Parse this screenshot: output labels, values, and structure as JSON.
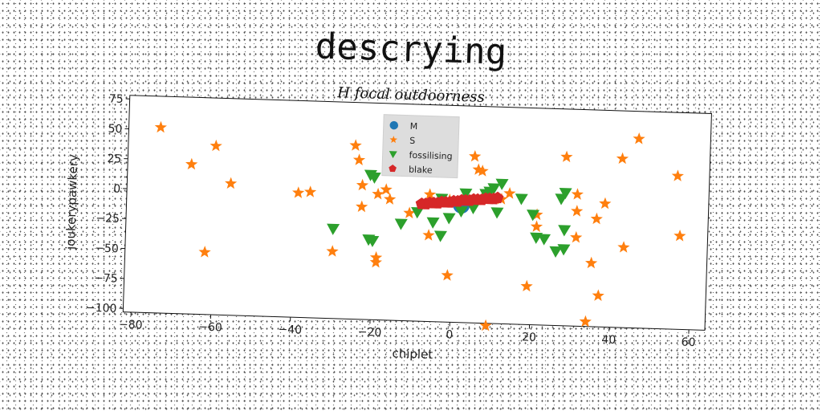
{
  "chart_data": {
    "type": "scatter",
    "title": "descrying",
    "subtitle": "H focal outdoorness",
    "xlabel": "chiplet",
    "ylabel": "joukerypawkery",
    "xlim": [
      -82,
      64
    ],
    "ylim": [
      -103,
      78
    ],
    "xticks": [
      -80,
      -60,
      -40,
      -20,
      0,
      20,
      40,
      60
    ],
    "yticks": [
      75,
      50,
      25,
      0,
      -25,
      -50,
      -75,
      -100
    ],
    "grid": false,
    "legend_position": "top-center",
    "series": [
      {
        "name": "M",
        "marker": "circle",
        "color": "#1f77b4",
        "points": [
          [
            2,
            -5
          ]
        ]
      },
      {
        "name": "S",
        "marker": "star",
        "color": "#ff7f0e",
        "points": [
          [
            -74,
            52
          ],
          [
            -66,
            22
          ],
          [
            -60,
            38
          ],
          [
            -56,
            7
          ],
          [
            -62,
            -51
          ],
          [
            -39,
            1
          ],
          [
            -36,
            2
          ],
          [
            -30,
            -47
          ],
          [
            -25,
            42
          ],
          [
            -24,
            30
          ],
          [
            -23,
            9
          ],
          [
            -23,
            -9
          ],
          [
            -19,
            2
          ],
          [
            -19,
            -51
          ],
          [
            -19,
            -55
          ],
          [
            -17,
            6
          ],
          [
            -16,
            -2
          ],
          [
            -11,
            -13
          ],
          [
            -6,
            3
          ],
          [
            -6,
            -31
          ],
          [
            -1,
            -1
          ],
          [
            -1,
            -64
          ],
          [
            5,
            36
          ],
          [
            6,
            25
          ],
          [
            7,
            24
          ],
          [
            9,
            -105
          ],
          [
            12,
            1
          ],
          [
            14,
            6
          ],
          [
            19,
            -71
          ],
          [
            21,
            -11
          ],
          [
            21,
            -21
          ],
          [
            28,
            38
          ],
          [
            31,
            7
          ],
          [
            31,
            -7
          ],
          [
            31,
            -29
          ],
          [
            34,
            -99
          ],
          [
            35,
            -50
          ],
          [
            36,
            -13
          ],
          [
            37,
            -77
          ],
          [
            38,
            0
          ],
          [
            42,
            38
          ],
          [
            43,
            -36
          ],
          [
            46,
            55
          ],
          [
            56,
            25
          ],
          [
            57,
            -25
          ]
        ]
      },
      {
        "name": "fossilising",
        "marker": "triangle-down",
        "color": "#2ca02c",
        "points": [
          [
            -30,
            -28
          ],
          [
            -21,
            -36
          ],
          [
            -20,
            -37
          ],
          [
            -21,
            18
          ],
          [
            -20,
            16
          ],
          [
            -13,
            -22
          ],
          [
            -9,
            -12
          ],
          [
            -5,
            -20
          ],
          [
            -3,
            0
          ],
          [
            -3,
            -31
          ],
          [
            -1,
            -16
          ],
          [
            2,
            -10
          ],
          [
            3,
            5
          ],
          [
            5,
            -7
          ],
          [
            8,
            5
          ],
          [
            9,
            7
          ],
          [
            10,
            10
          ],
          [
            11,
            -10
          ],
          [
            12,
            14
          ],
          [
            17,
            2
          ],
          [
            20,
            -11
          ],
          [
            21,
            -30
          ],
          [
            23,
            -31
          ],
          [
            26,
            -41
          ],
          [
            28,
            -39
          ],
          [
            27,
            3
          ],
          [
            28,
            8
          ],
          [
            28,
            -23
          ]
        ]
      },
      {
        "name": "blake",
        "marker": "pentagon",
        "color": "#d62728",
        "points": [
          [
            -8,
            -5
          ],
          [
            -7,
            -5
          ],
          [
            -6,
            -4
          ],
          [
            -5,
            -4
          ],
          [
            -4,
            -4
          ],
          [
            -3,
            -3
          ],
          [
            -2,
            -3
          ],
          [
            -1,
            -3
          ],
          [
            0,
            -2
          ],
          [
            1,
            -2
          ],
          [
            2,
            -1
          ],
          [
            3,
            -1
          ],
          [
            4,
            -1
          ],
          [
            5,
            0
          ],
          [
            6,
            0
          ],
          [
            7,
            0
          ],
          [
            8,
            1
          ],
          [
            9,
            1
          ],
          [
            10,
            1
          ],
          [
            11,
            2
          ]
        ]
      }
    ]
  }
}
